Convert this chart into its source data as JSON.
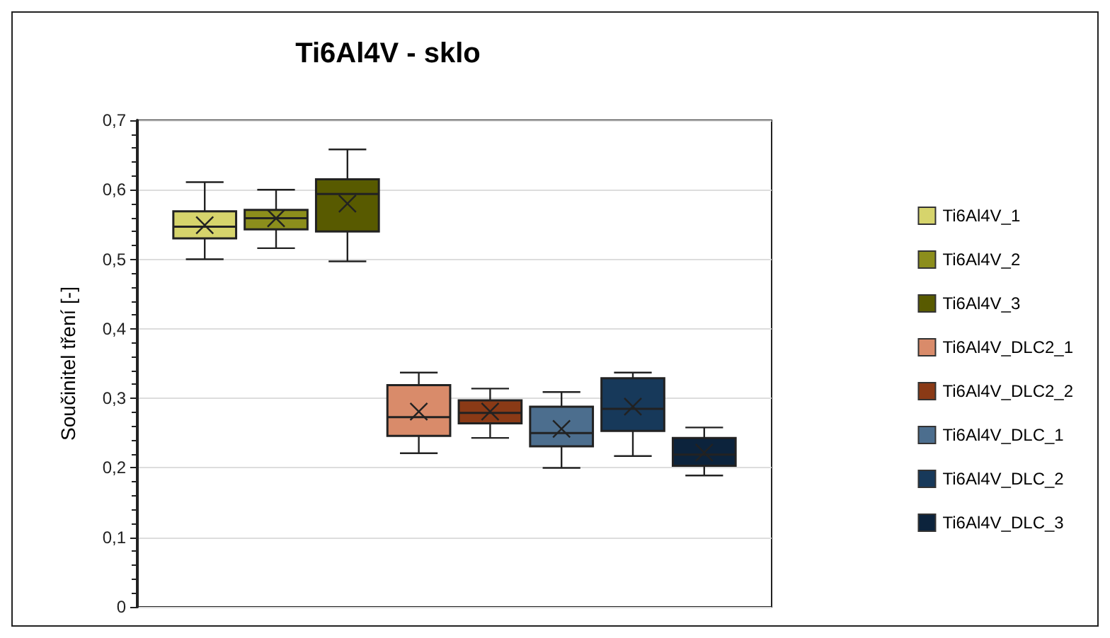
{
  "chart_data": {
    "type": "box",
    "title": "Ti6Al4V - sklo",
    "ylabel": "Součinitel tření [-]",
    "categories": [
      null
    ],
    "ylim": [
      0,
      0.7
    ],
    "yticks": [
      0,
      {
        "value": 0.1,
        "label": "0,1"
      },
      {
        "value": 0.2,
        "label": "0,2"
      },
      {
        "value": 0.3,
        "label": "0,3"
      },
      {
        "value": 0.4,
        "label": "0,4"
      },
      {
        "value": 0.5,
        "label": "0,5"
      },
      {
        "value": 0.6,
        "label": "0,6"
      },
      {
        "value": 0.7,
        "label": "0,7"
      }
    ],
    "grid": "y",
    "legend": "right",
    "marker": "cross",
    "series": [
      {
        "name": "Ti6Al4V_1",
        "color": "#d6d46c",
        "boxes": [
          {
            "low": 0.5,
            "q1": 0.53,
            "median": 0.547,
            "q3": 0.569,
            "high": 0.611,
            "mean": 0.549
          }
        ]
      },
      {
        "name": "Ti6Al4V_2",
        "color": "#8c8e1c",
        "boxes": [
          {
            "low": 0.516,
            "q1": 0.543,
            "median": 0.559,
            "q3": 0.571,
            "high": 0.6,
            "mean": 0.559
          }
        ]
      },
      {
        "name": "Ti6Al4V_3",
        "color": "#585a00",
        "boxes": [
          {
            "low": 0.497,
            "q1": 0.54,
            "median": 0.594,
            "q3": 0.615,
            "high": 0.658,
            "mean": 0.58
          }
        ]
      },
      {
        "name": "Ti6Al4V_DLC2_1",
        "color": "#d98b6a",
        "boxes": [
          {
            "low": 0.221,
            "q1": 0.246,
            "median": 0.273,
            "q3": 0.319,
            "high": 0.337,
            "mean": 0.281
          }
        ]
      },
      {
        "name": "Ti6Al4V_DLC2_2",
        "color": "#8a3a16",
        "boxes": [
          {
            "low": 0.243,
            "q1": 0.264,
            "median": 0.279,
            "q3": 0.297,
            "high": 0.314,
            "mean": 0.281
          }
        ]
      },
      {
        "name": "Ti6Al4V_DLC_1",
        "color": "#4c6e8e",
        "boxes": [
          {
            "low": 0.2,
            "q1": 0.231,
            "median": 0.25,
            "q3": 0.288,
            "high": 0.309,
            "mean": 0.256
          }
        ]
      },
      {
        "name": "Ti6Al4V_DLC_2",
        "color": "#17395a",
        "boxes": [
          {
            "low": 0.217,
            "q1": 0.253,
            "median": 0.285,
            "q3": 0.329,
            "high": 0.337,
            "mean": 0.288
          }
        ]
      },
      {
        "name": "Ti6Al4V_DLC_3",
        "color": "#0c233c",
        "boxes": [
          {
            "low": 0.189,
            "q1": 0.203,
            "median": 0.219,
            "q3": 0.243,
            "high": 0.258,
            "mean": 0.222
          }
        ]
      }
    ]
  }
}
